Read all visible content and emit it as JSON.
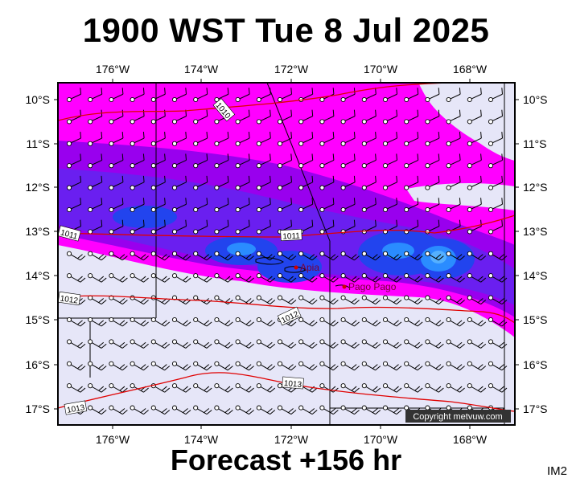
{
  "title": "1900 WST Tue 8 Jul 2025",
  "footer": "Forecast +156 hr",
  "map_id": "IM2",
  "copyright": "Copyright metvuw.com",
  "lon_labels": [
    "176°W",
    "174°W",
    "172°W",
    "170°W",
    "168°W"
  ],
  "lat_labels": [
    "10°S",
    "11°S",
    "12°S",
    "13°S",
    "14°S",
    "15°S",
    "16°S",
    "17°S"
  ],
  "isobars": [
    "1010",
    "1011",
    "1011",
    "1012",
    "1012",
    "1013",
    "1013"
  ],
  "cities": [
    {
      "name": "Apia",
      "color": "#d40000"
    },
    {
      "name": "Pago Pago",
      "color": "#d40000"
    }
  ],
  "colors": {
    "frame": "#000000",
    "isobar": "#e00000",
    "dry_fill": "#e6e6f8",
    "magenta": "#ff00ff",
    "purple": "#9900ee",
    "violet": "#6a1ff0",
    "blue": "#2244ee",
    "cyan_blue": "#2a8cff"
  }
}
